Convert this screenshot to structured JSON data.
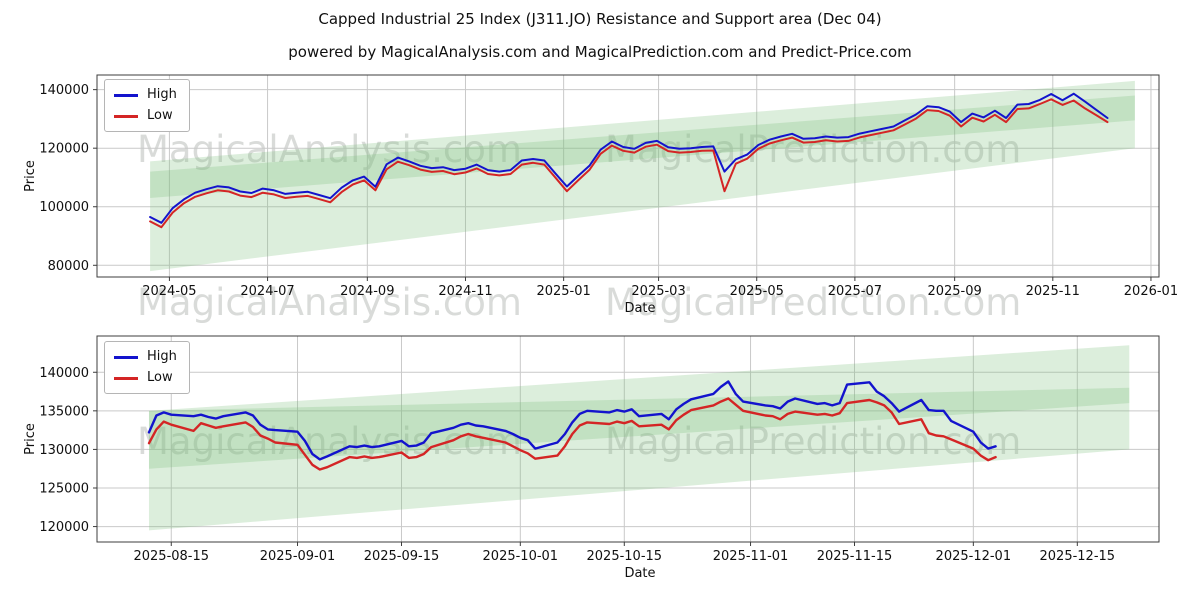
{
  "title": "Capped Industrial 25 Index (J311.JO) Resistance and Support area (Dec 04)",
  "subtitle": "powered by MagicalAnalysis.com and MagicalPrediction.com and Predict-Price.com",
  "legend": {
    "high_label": "High",
    "low_label": "Low"
  },
  "watermark": {
    "left": "MagicalAnalysis.com",
    "right": "MagicalPrediction.com"
  },
  "colors": {
    "high": "#1313cd",
    "low": "#d42525",
    "band": "#7fbf7f",
    "grid": "#c9c9c9",
    "spine": "#3c3c3c",
    "text": "#101010"
  },
  "chart_data": [
    {
      "type": "line",
      "title": "Full history with resistance and support projection",
      "xlabel": "Date",
      "ylabel": "Price",
      "grid": true,
      "legend_position": "upper-left",
      "x_domain": [
        "2024-03-17",
        "2026-01-06"
      ],
      "y_domain": [
        76000,
        145000
      ],
      "x_ticks": [
        {
          "date": "2024-05-01",
          "label": "2024-05"
        },
        {
          "date": "2024-07-01",
          "label": "2024-07"
        },
        {
          "date": "2024-09-01",
          "label": "2024-09"
        },
        {
          "date": "2024-11-01",
          "label": "2024-11"
        },
        {
          "date": "2025-01-01",
          "label": "2025-01"
        },
        {
          "date": "2025-03-01",
          "label": "2025-03"
        },
        {
          "date": "2025-05-01",
          "label": "2025-05"
        },
        {
          "date": "2025-07-01",
          "label": "2025-07"
        },
        {
          "date": "2025-09-01",
          "label": "2025-09"
        },
        {
          "date": "2025-11-01",
          "label": "2025-11"
        },
        {
          "date": "2026-01-01",
          "label": "2026-01"
        }
      ],
      "y_ticks": [
        80000,
        100000,
        120000,
        140000
      ],
      "bands": [
        [
          [
            "2024-04-19",
            115500
          ],
          [
            "2025-12-22",
            143000
          ],
          [
            "2025-12-22",
            129500
          ],
          [
            "2024-04-19",
            103000
          ]
        ],
        [
          [
            "2024-04-19",
            112000
          ],
          [
            "2025-12-22",
            138000
          ],
          [
            "2025-12-22",
            120000
          ],
          [
            "2024-04-19",
            78000
          ]
        ]
      ],
      "series": [
        {
          "name": "High",
          "color": "high",
          "start": "2024-04-19",
          "step_days": 7,
          "values": [
            96500,
            94500,
            99500,
            102500,
            104800,
            106000,
            107000,
            106600,
            105200,
            104700,
            106200,
            105600,
            104400,
            104800,
            105100,
            104000,
            102900,
            106500,
            109000,
            110300,
            106800,
            114500,
            116800,
            115500,
            114000,
            113200,
            113500,
            112500,
            113000,
            114400,
            112500,
            112000,
            112500,
            115800,
            116300,
            115800,
            111300,
            106900,
            110500,
            114000,
            119500,
            122300,
            120400,
            119800,
            121800,
            122500,
            120300,
            119800,
            120000,
            120400,
            120600,
            112000,
            116200,
            117800,
            121100,
            122900,
            124000,
            124900,
            123200,
            123400,
            124000,
            123600,
            123800,
            125000,
            125800,
            126600,
            127400,
            129500,
            131500,
            134300,
            134000,
            132500,
            128900,
            131800,
            130500,
            132800,
            130300,
            134900,
            135100,
            136500,
            138500,
            136400,
            138600,
            135900,
            133100,
            130300
          ]
        },
        {
          "name": "Low",
          "color": "low",
          "start": "2024-04-19",
          "step_days": 7,
          "values": [
            95000,
            93000,
            98000,
            101200,
            103400,
            104600,
            105600,
            105200,
            103800,
            103300,
            104800,
            104200,
            103000,
            103400,
            103700,
            102600,
            101500,
            105000,
            107600,
            109000,
            105600,
            112800,
            115400,
            114200,
            112700,
            111900,
            112200,
            111100,
            111700,
            113100,
            111200,
            110700,
            111200,
            114400,
            115000,
            114400,
            109900,
            105300,
            109000,
            112600,
            118100,
            120900,
            119100,
            118500,
            120500,
            121200,
            119000,
            118500,
            118700,
            119100,
            119200,
            105300,
            114700,
            116400,
            119800,
            121600,
            122700,
            123600,
            121900,
            122100,
            122700,
            122300,
            122500,
            123700,
            124500,
            125300,
            126100,
            128100,
            130100,
            133000,
            132700,
            131100,
            127400,
            130400,
            129100,
            131400,
            128900,
            133400,
            133600,
            135100,
            136700,
            134800,
            136300,
            133600,
            131300,
            128900
          ]
        }
      ]
    },
    {
      "type": "line",
      "title": "Recent window with resistance and support projection",
      "xlabel": "Date",
      "ylabel": "Price",
      "grid": true,
      "legend_position": "upper-left",
      "x_domain": [
        "2025-08-05",
        "2025-12-26"
      ],
      "y_domain": [
        118000,
        144700
      ],
      "x_ticks": [
        {
          "date": "2025-08-15",
          "label": "2025-08-15"
        },
        {
          "date": "2025-09-01",
          "label": "2025-09-01"
        },
        {
          "date": "2025-09-15",
          "label": "2025-09-15"
        },
        {
          "date": "2025-10-01",
          "label": "2025-10-01"
        },
        {
          "date": "2025-10-15",
          "label": "2025-10-15"
        },
        {
          "date": "2025-11-01",
          "label": "2025-11-01"
        },
        {
          "date": "2025-11-15",
          "label": "2025-11-15"
        },
        {
          "date": "2025-12-01",
          "label": "2025-12-01"
        },
        {
          "date": "2025-12-15",
          "label": "2025-12-15"
        }
      ],
      "y_ticks": [
        120000,
        125000,
        130000,
        135000,
        140000
      ],
      "bands": [
        [
          [
            "2025-08-12",
            135000
          ],
          [
            "2025-12-22",
            143500
          ],
          [
            "2025-12-22",
            136000
          ],
          [
            "2025-08-12",
            127500
          ]
        ],
        [
          [
            "2025-08-12",
            135000
          ],
          [
            "2025-12-22",
            138000
          ],
          [
            "2025-12-22",
            130000
          ],
          [
            "2025-08-12",
            119500
          ]
        ]
      ],
      "series": [
        {
          "name": "High",
          "color": "high",
          "start": "2025-08-12",
          "step": "weekdays",
          "values": [
            132200,
            134400,
            134800,
            134500,
            134300,
            134500,
            134200,
            134000,
            134300,
            134800,
            134400,
            133200,
            132600,
            132500,
            132300,
            131100,
            129400,
            128700,
            129100,
            130400,
            130300,
            130500,
            130300,
            130400,
            131100,
            130400,
            130500,
            130900,
            132100,
            132800,
            133200,
            133400,
            133100,
            133000,
            132400,
            132000,
            131500,
            131200,
            130100,
            130900,
            132000,
            133500,
            134600,
            135000,
            134800,
            135100,
            134900,
            135200,
            134300,
            134600,
            133900,
            135200,
            135900,
            136500,
            137200,
            138100,
            138800,
            137200,
            136200,
            135700,
            135600,
            135300,
            136200,
            136600,
            135900,
            136000,
            135700,
            136000,
            138400,
            138700,
            137500,
            136900,
            136000,
            134900,
            136400,
            135100,
            135000,
            135000,
            133700,
            132300,
            130900,
            130100,
            130400
          ]
        },
        {
          "name": "Low",
          "color": "low",
          "start": "2025-08-12",
          "step": "weekdays",
          "values": [
            130800,
            132600,
            133600,
            133200,
            132400,
            133400,
            133100,
            132800,
            133000,
            133500,
            132900,
            131800,
            131400,
            130900,
            130600,
            129300,
            128000,
            127400,
            127700,
            129000,
            128900,
            129100,
            128900,
            129000,
            129600,
            128900,
            129000,
            129400,
            130300,
            131200,
            131700,
            132000,
            131700,
            131500,
            130900,
            130400,
            129900,
            129500,
            128800,
            129200,
            130400,
            132000,
            133100,
            133500,
            133300,
            133600,
            133400,
            133700,
            133000,
            133200,
            132600,
            133800,
            134500,
            135100,
            135700,
            136200,
            136600,
            135800,
            135000,
            134400,
            134300,
            133900,
            134600,
            134900,
            134500,
            134600,
            134400,
            134700,
            136000,
            136400,
            136100,
            135700,
            134800,
            133300,
            133900,
            132100,
            131800,
            131700,
            131300,
            130100,
            129200,
            128600,
            129000
          ]
        }
      ]
    }
  ]
}
